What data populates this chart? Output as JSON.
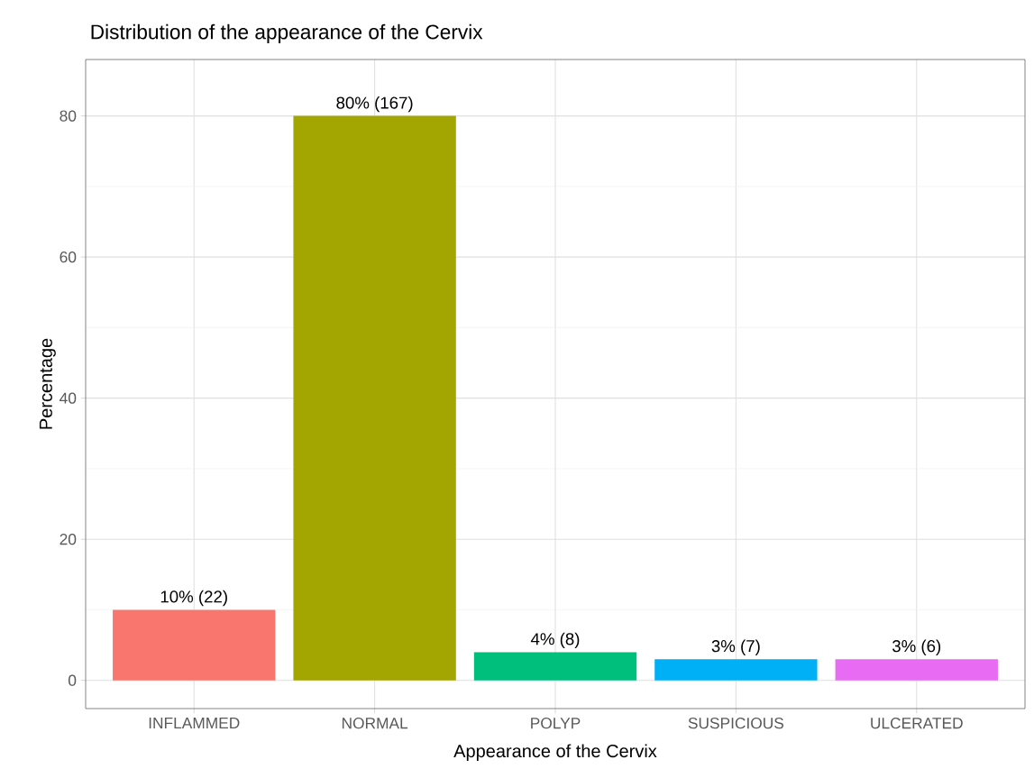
{
  "chart_data": {
    "type": "bar",
    "title": "Distribution of the appearance of the Cervix",
    "xlabel": "Appearance of the Cervix",
    "ylabel": "Percentage",
    "categories": [
      "INFLAMMED",
      "NORMAL",
      "POLYP",
      "SUSPICIOUS",
      "ULCERATED"
    ],
    "values": [
      10,
      80,
      4,
      3,
      3
    ],
    "value_labels": [
      "10% (22)",
      "80% (167)",
      "4% (8)",
      "3% (7)",
      "3% (6)"
    ],
    "colors": [
      "#f8766d",
      "#a3a500",
      "#00bf7d",
      "#00b0f6",
      "#e76bf3"
    ],
    "ylim": [
      -4,
      88
    ],
    "yticks": [
      0,
      20,
      40,
      60,
      80
    ],
    "grid": true
  }
}
